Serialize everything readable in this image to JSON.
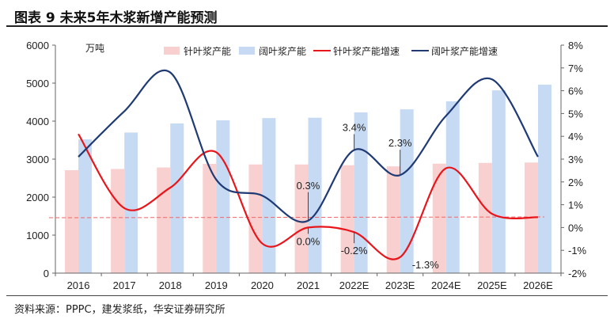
{
  "title": "图表 9 未来5年木浆新增产能预测",
  "source": "资料来源：PPPC，建发浆纸，华安证券研究所",
  "chart_data": {
    "type": "bar+line",
    "categories": [
      "2016",
      "2017",
      "2018",
      "2019",
      "2020",
      "2021",
      "2022E",
      "2023E",
      "2024E",
      "2025E",
      "2026E"
    ],
    "left_unit": "万吨",
    "left_ylim": [
      0,
      6000
    ],
    "left_ticks": [
      "0",
      "1000",
      "2000",
      "3000",
      "4000",
      "5000",
      "6000"
    ],
    "right_ylim": [
      -2,
      8
    ],
    "right_ticks": [
      "-2%",
      "-1%",
      "0%",
      "1%",
      "2%",
      "3%",
      "4%",
      "5%",
      "6%",
      "7%",
      "8%"
    ],
    "bar_series": [
      {
        "name": "针叶浆产能",
        "color": "#f9d0d0",
        "values": [
          2710,
          2740,
          2780,
          2875,
          2860,
          2860,
          2840,
          2810,
          2880,
          2900,
          2910
        ]
      },
      {
        "name": "阔叶浆产能",
        "color": "#c6daf4",
        "values": [
          3520,
          3700,
          3940,
          4020,
          4080,
          4090,
          4230,
          4310,
          4520,
          4810,
          4960
        ]
      }
    ],
    "line_series": [
      {
        "name": "针叶浆产能增速",
        "color": "#e8161b",
        "values": [
          4.1,
          0.85,
          1.75,
          3.3,
          -0.7,
          0.0,
          -0.2,
          -1.3,
          2.6,
          0.6,
          0.45
        ]
      },
      {
        "name": "阔叶浆产能增速",
        "color": "#1f3a74",
        "values": [
          3.1,
          5.1,
          6.8,
          2.1,
          1.4,
          0.3,
          3.4,
          2.3,
          4.9,
          6.5,
          3.1
        ]
      }
    ],
    "reference_line": {
      "value": 0.43,
      "style": "dashed",
      "color": "#e86a6a"
    },
    "annotations": [
      {
        "text": "0.3%",
        "series": 1,
        "index": 5
      },
      {
        "text": "0.0%",
        "series": 0,
        "index": 5
      },
      {
        "text": "3.4%",
        "series": 1,
        "index": 6
      },
      {
        "text": "-0.2%",
        "series": 0,
        "index": 6
      },
      {
        "text": "2.3%",
        "series": 1,
        "index": 7
      },
      {
        "text": "-1.3%",
        "series": 0,
        "index": 7
      }
    ],
    "legend_placement": "top",
    "grid": false
  }
}
